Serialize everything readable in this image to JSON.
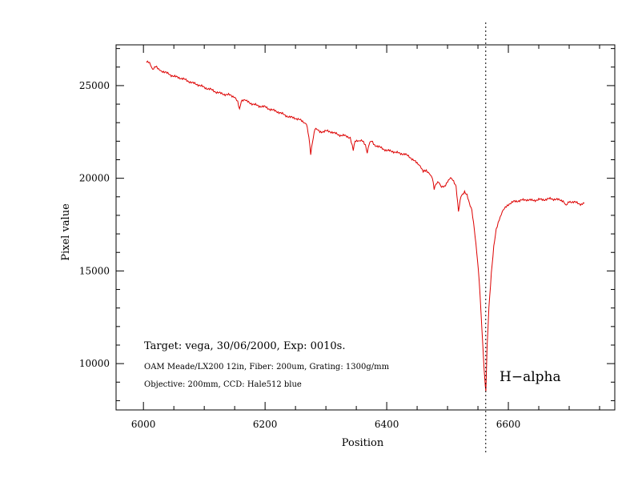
{
  "chart_data": {
    "type": "line",
    "title": "",
    "xlabel": "Position",
    "ylabel": "Pixel value",
    "xlim": [
      5955,
      6775
    ],
    "ylim": [
      7500,
      27200
    ],
    "x_ticks": [
      6000,
      6200,
      6400,
      6600
    ],
    "y_ticks": [
      10000,
      15000,
      20000,
      25000
    ],
    "grid": false,
    "line_color": "#dd0000",
    "vline": {
      "x": 6562.8,
      "label": "H−alpha",
      "style": "dotted"
    },
    "annotations": {
      "target": "Target: vega, 30/06/2000, Exp: 0010s.",
      "instrument": "OAM Meade/LX200 12in, Fiber: 200um, Grating: 1300g/mm",
      "objective": "Objective: 200mm, CCD: Hale512 blue"
    },
    "series": [
      {
        "x": [
          6005,
          6010,
          6015,
          6020,
          6025,
          6030,
          6040,
          6050,
          6060,
          6070,
          6080,
          6090,
          6100,
          6110,
          6120,
          6130,
          6140,
          6150,
          6155,
          6158,
          6161,
          6165,
          6170,
          6180,
          6190,
          6200,
          6210,
          6220,
          6230,
          6240,
          6250,
          6260,
          6268,
          6272,
          6275,
          6278,
          6282,
          6290,
          6300,
          6310,
          6320,
          6330,
          6340,
          6345,
          6348,
          6352,
          6360,
          6365,
          6368,
          6371,
          6375,
          6380,
          6390,
          6400,
          6410,
          6420,
          6430,
          6440,
          6450,
          6455,
          6460,
          6465,
          6470,
          6475,
          6478,
          6481,
          6485,
          6490,
          6495,
          6500,
          6505,
          6510,
          6514,
          6518,
          6522,
          6528,
          6532,
          6536,
          6540,
          6544,
          6548,
          6552,
          6555,
          6558,
          6560,
          6562,
          6563,
          6565,
          6568,
          6572,
          6576,
          6580,
          6585,
          6590,
          6595,
          6600,
          6610,
          6620,
          6630,
          6640,
          6650,
          6660,
          6670,
          6680,
          6690,
          6695,
          6700,
          6710,
          6720,
          6725
        ],
        "y": [
          26300,
          26200,
          25900,
          26050,
          25850,
          25800,
          25650,
          25500,
          25420,
          25300,
          25150,
          25050,
          24900,
          24800,
          24650,
          24550,
          24500,
          24400,
          24100,
          23700,
          24200,
          24250,
          24150,
          24000,
          23900,
          23850,
          23700,
          23600,
          23450,
          23300,
          23250,
          23100,
          22950,
          22200,
          21300,
          22000,
          22700,
          22500,
          22550,
          22500,
          22350,
          22300,
          22200,
          21500,
          22000,
          22050,
          22000,
          21800,
          21400,
          21850,
          22000,
          21800,
          21650,
          21500,
          21450,
          21350,
          21300,
          21100,
          20800,
          20700,
          20350,
          20400,
          20300,
          20000,
          19400,
          19700,
          19850,
          19500,
          19550,
          19850,
          20000,
          19850,
          19600,
          18200,
          19000,
          19300,
          19100,
          18600,
          18300,
          17300,
          16000,
          14500,
          12800,
          11000,
          9800,
          8800,
          8500,
          10800,
          13000,
          14900,
          16300,
          17200,
          17800,
          18200,
          18400,
          18600,
          18750,
          18800,
          18850,
          18800,
          18850,
          18850,
          18900,
          18850,
          18800,
          18500,
          18750,
          18700,
          18600,
          18650
        ]
      }
    ]
  }
}
